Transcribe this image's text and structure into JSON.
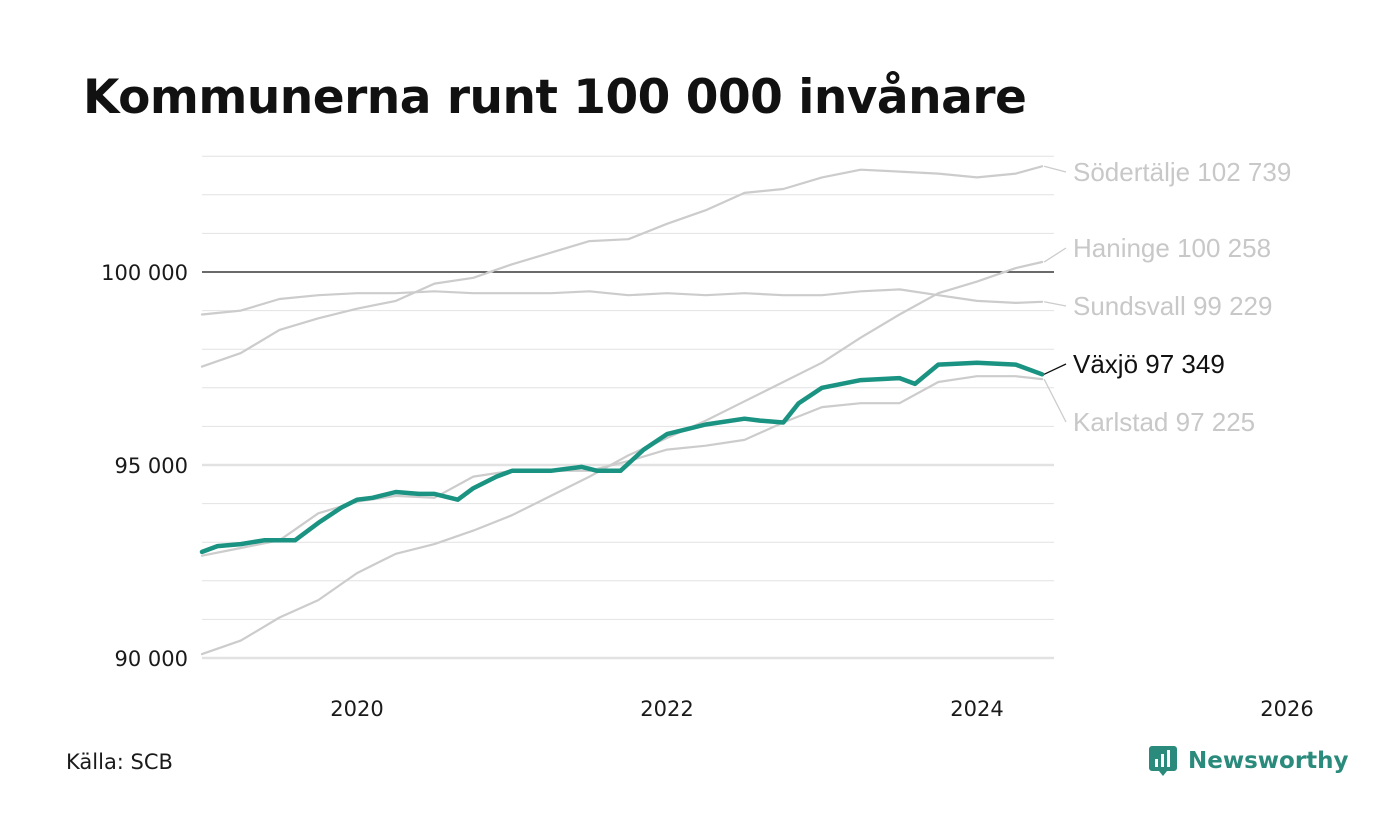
{
  "title": "Kommunerna runt 100 000 invånare",
  "source": "Källa: SCB",
  "brand": {
    "name": "Newsworthy",
    "icon": "newsworthy-logo-icon",
    "color": "#2a8a7b"
  },
  "chart_data": {
    "type": "line",
    "title": "Kommunerna runt 100 000 invånare",
    "xlabel": "",
    "ylabel": "",
    "xlim": [
      2019.0,
      2026.0
    ],
    "ylim": [
      89800,
      103000
    ],
    "x_ticks": [
      {
        "value": 2020,
        "label": "2020"
      },
      {
        "value": 2022,
        "label": "2022"
      },
      {
        "value": 2024,
        "label": "2024"
      },
      {
        "value": 2026,
        "label": "2026"
      }
    ],
    "y_ticks": [
      {
        "value": 90000,
        "label": "90 000"
      },
      {
        "value": 95000,
        "label": "95 000"
      },
      {
        "value": 100000,
        "label": "100 000"
      }
    ],
    "reference_line": 100000,
    "grid": true,
    "legend": "direct labels at right end of lines",
    "series": [
      {
        "name": "Södertälje",
        "end_label": "Södertälje 102 739",
        "color": "#cccccc",
        "highlight": false,
        "points": [
          [
            2019.0,
            97550
          ],
          [
            2019.25,
            97900
          ],
          [
            2019.5,
            98500
          ],
          [
            2019.75,
            98800
          ],
          [
            2020.0,
            99050
          ],
          [
            2020.25,
            99250
          ],
          [
            2020.5,
            99700
          ],
          [
            2020.75,
            99850
          ],
          [
            2021.0,
            100200
          ],
          [
            2021.25,
            100500
          ],
          [
            2021.5,
            100800
          ],
          [
            2021.75,
            100850
          ],
          [
            2022.0,
            101250
          ],
          [
            2022.25,
            101600
          ],
          [
            2022.5,
            102050
          ],
          [
            2022.75,
            102150
          ],
          [
            2023.0,
            102450
          ],
          [
            2023.25,
            102650
          ],
          [
            2023.5,
            102600
          ],
          [
            2023.75,
            102550
          ],
          [
            2024.0,
            102450
          ],
          [
            2024.25,
            102550
          ],
          [
            2024.42,
            102739
          ]
        ]
      },
      {
        "name": "Haninge",
        "end_label": "Haninge 100 258",
        "color": "#cccccc",
        "highlight": false,
        "points": [
          [
            2019.0,
            90100
          ],
          [
            2019.25,
            90450
          ],
          [
            2019.5,
            91050
          ],
          [
            2019.75,
            91500
          ],
          [
            2020.0,
            92200
          ],
          [
            2020.25,
            92700
          ],
          [
            2020.5,
            92950
          ],
          [
            2020.75,
            93300
          ],
          [
            2021.0,
            93700
          ],
          [
            2021.25,
            94200
          ],
          [
            2021.5,
            94700
          ],
          [
            2021.75,
            95250
          ],
          [
            2022.0,
            95700
          ],
          [
            2022.25,
            96150
          ],
          [
            2022.5,
            96650
          ],
          [
            2022.75,
            97150
          ],
          [
            2023.0,
            97650
          ],
          [
            2023.25,
            98300
          ],
          [
            2023.5,
            98900
          ],
          [
            2023.75,
            99450
          ],
          [
            2024.0,
            99750
          ],
          [
            2024.25,
            100100
          ],
          [
            2024.42,
            100258
          ]
        ]
      },
      {
        "name": "Sundsvall",
        "end_label": "Sundsvall  99 229",
        "color": "#cccccc",
        "highlight": false,
        "points": [
          [
            2019.0,
            98900
          ],
          [
            2019.25,
            99000
          ],
          [
            2019.5,
            99300
          ],
          [
            2019.75,
            99400
          ],
          [
            2020.0,
            99450
          ],
          [
            2020.25,
            99450
          ],
          [
            2020.5,
            99500
          ],
          [
            2020.75,
            99450
          ],
          [
            2021.0,
            99450
          ],
          [
            2021.25,
            99450
          ],
          [
            2021.5,
            99500
          ],
          [
            2021.75,
            99400
          ],
          [
            2022.0,
            99450
          ],
          [
            2022.25,
            99400
          ],
          [
            2022.5,
            99450
          ],
          [
            2022.75,
            99400
          ],
          [
            2023.0,
            99400
          ],
          [
            2023.25,
            99500
          ],
          [
            2023.5,
            99550
          ],
          [
            2023.75,
            99400
          ],
          [
            2024.0,
            99250
          ],
          [
            2024.25,
            99200
          ],
          [
            2024.42,
            99229
          ]
        ]
      },
      {
        "name": "Karlstad",
        "end_label": "Karlstad  97 225",
        "color": "#cccccc",
        "highlight": false,
        "points": [
          [
            2019.0,
            92650
          ],
          [
            2019.25,
            92850
          ],
          [
            2019.5,
            93050
          ],
          [
            2019.75,
            93750
          ],
          [
            2020.0,
            94050
          ],
          [
            2020.25,
            94200
          ],
          [
            2020.5,
            94150
          ],
          [
            2020.75,
            94700
          ],
          [
            2021.0,
            94850
          ],
          [
            2021.25,
            94850
          ],
          [
            2021.5,
            94850
          ],
          [
            2021.75,
            95100
          ],
          [
            2022.0,
            95400
          ],
          [
            2022.25,
            95500
          ],
          [
            2022.5,
            95650
          ],
          [
            2022.75,
            96100
          ],
          [
            2023.0,
            96500
          ],
          [
            2023.25,
            96600
          ],
          [
            2023.5,
            96600
          ],
          [
            2023.75,
            97150
          ],
          [
            2024.0,
            97300
          ],
          [
            2024.25,
            97300
          ],
          [
            2024.42,
            97225
          ]
        ]
      },
      {
        "name": "Växjö",
        "end_label": "Växjö  97 349",
        "color": "#1a9382",
        "highlight": true,
        "points": [
          [
            2019.0,
            92750
          ],
          [
            2019.1,
            92900
          ],
          [
            2019.25,
            92950
          ],
          [
            2019.4,
            93050
          ],
          [
            2019.6,
            93050
          ],
          [
            2019.75,
            93500
          ],
          [
            2019.9,
            93900
          ],
          [
            2020.0,
            94100
          ],
          [
            2020.1,
            94150
          ],
          [
            2020.25,
            94300
          ],
          [
            2020.4,
            94250
          ],
          [
            2020.5,
            94250
          ],
          [
            2020.65,
            94100
          ],
          [
            2020.75,
            94400
          ],
          [
            2020.9,
            94700
          ],
          [
            2021.0,
            94850
          ],
          [
            2021.25,
            94850
          ],
          [
            2021.45,
            94950
          ],
          [
            2021.55,
            94850
          ],
          [
            2021.7,
            94850
          ],
          [
            2021.85,
            95400
          ],
          [
            2022.0,
            95800
          ],
          [
            2022.25,
            96050
          ],
          [
            2022.5,
            96200
          ],
          [
            2022.6,
            96150
          ],
          [
            2022.75,
            96100
          ],
          [
            2022.85,
            96600
          ],
          [
            2023.0,
            97000
          ],
          [
            2023.25,
            97200
          ],
          [
            2023.5,
            97250
          ],
          [
            2023.6,
            97100
          ],
          [
            2023.75,
            97600
          ],
          [
            2024.0,
            97650
          ],
          [
            2024.25,
            97600
          ],
          [
            2024.42,
            97349
          ]
        ]
      }
    ]
  }
}
